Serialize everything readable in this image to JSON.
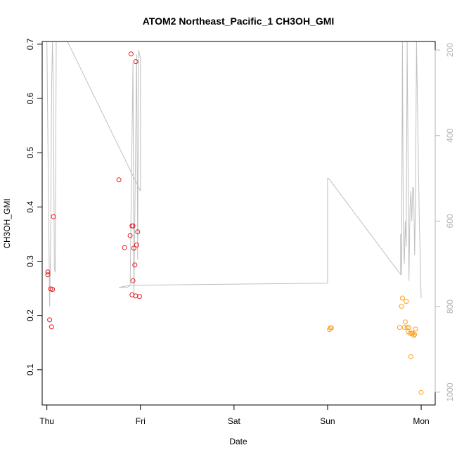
{
  "chart_data": {
    "type": "scatter",
    "title": "ATOM2 Northeast_Pacific_1 CH3OH_GMI",
    "xlabel": "Date",
    "ylabel": "CH3OH_GMI",
    "x_unit": "days",
    "xlim": [
      -0.05,
      4.15
    ],
    "ylim": [
      0.035,
      0.705
    ],
    "x_ticks": [
      {
        "value": 0,
        "label": "Thu"
      },
      {
        "value": 1,
        "label": "Fri"
      },
      {
        "value": 2,
        "label": "Sat"
      },
      {
        "value": 3,
        "label": "Sun"
      },
      {
        "value": 4,
        "label": "Mon"
      }
    ],
    "y_ticks": [
      0.1,
      0.2,
      0.3,
      0.4,
      0.5,
      0.6,
      0.7
    ],
    "right_axis": {
      "ticks": [
        200,
        400,
        600,
        800,
        1000
      ],
      "lim": [
        180,
        1030
      ],
      "color": "#b3b3b3",
      "reversed": true
    },
    "series": [
      {
        "color": "#e41a1c",
        "points": [
          [
            0.01,
            0.28
          ],
          [
            0.01,
            0.275
          ],
          [
            0.03,
            0.192
          ],
          [
            0.04,
            0.249
          ],
          [
            0.05,
            0.179
          ],
          [
            0.06,
            0.248
          ],
          [
            0.07,
            0.382
          ],
          [
            0.77,
            0.45
          ],
          [
            0.83,
            0.325
          ],
          [
            0.89,
            0.347
          ],
          [
            0.9,
            0.682
          ],
          [
            0.91,
            0.365
          ],
          [
            0.91,
            0.238
          ],
          [
            0.92,
            0.365
          ],
          [
            0.92,
            0.264
          ],
          [
            0.93,
            0.324
          ],
          [
            0.94,
            0.293
          ],
          [
            0.95,
            0.668
          ],
          [
            0.95,
            0.236
          ],
          [
            0.96,
            0.33
          ],
          [
            0.97,
            0.354
          ],
          [
            0.99,
            0.235
          ]
        ]
      },
      {
        "color": "#ff9f1c",
        "points": [
          [
            3.02,
            0.174
          ],
          [
            3.03,
            0.177
          ],
          [
            3.04,
            0.177
          ],
          [
            3.77,
            0.178
          ],
          [
            3.79,
            0.217
          ],
          [
            3.8,
            0.232
          ],
          [
            3.82,
            0.178
          ],
          [
            3.83,
            0.188
          ],
          [
            3.84,
            0.226
          ],
          [
            3.85,
            0.178
          ],
          [
            3.86,
            0.17
          ],
          [
            3.87,
            0.178
          ],
          [
            3.88,
            0.167
          ],
          [
            3.89,
            0.124
          ],
          [
            3.9,
            0.167
          ],
          [
            3.91,
            0.167
          ],
          [
            3.92,
            0.163
          ],
          [
            3.93,
            0.165
          ],
          [
            3.94,
            0.175
          ],
          [
            4.0,
            0.058
          ]
        ]
      }
    ],
    "line_series": {
      "color": "#c0c0c0",
      "axis": "right",
      "points": [
        [
          0.0,
          150
        ],
        [
          0.02,
          600
        ],
        [
          0.03,
          800
        ],
        [
          0.04,
          660
        ],
        [
          0.05,
          300
        ],
        [
          0.06,
          150
        ],
        [
          0.07,
          300
        ],
        [
          0.08,
          710
        ],
        [
          0.09,
          720
        ],
        [
          0.1,
          140
        ],
        [
          0.22,
          170
        ],
        [
          1.0,
          530
        ],
        [
          1.0,
          220
        ],
        [
          0.98,
          200
        ],
        [
          0.97,
          690
        ],
        [
          0.96,
          210
        ],
        [
          0.93,
          780
        ],
        [
          0.92,
          230
        ],
        [
          0.89,
          750
        ],
        [
          0.86,
          755
        ],
        [
          0.77,
          755
        ],
        [
          0.89,
          750
        ],
        [
          3.0,
          745
        ],
        [
          3.0,
          500
        ],
        [
          3.01,
          500
        ],
        [
          3.78,
          725
        ],
        [
          3.78,
          630
        ],
        [
          3.79,
          725
        ],
        [
          3.8,
          180
        ],
        [
          3.81,
          640
        ],
        [
          3.82,
          700
        ],
        [
          3.83,
          600
        ],
        [
          3.84,
          660
        ],
        [
          3.85,
          160
        ],
        [
          3.87,
          740
        ],
        [
          3.88,
          570
        ],
        [
          3.89,
          530
        ],
        [
          3.9,
          600
        ],
        [
          3.91,
          520
        ],
        [
          3.92,
          525
        ],
        [
          3.93,
          680
        ],
        [
          3.94,
          550
        ],
        [
          3.95,
          160
        ],
        [
          3.98,
          600
        ],
        [
          4.0,
          780
        ]
      ]
    }
  }
}
